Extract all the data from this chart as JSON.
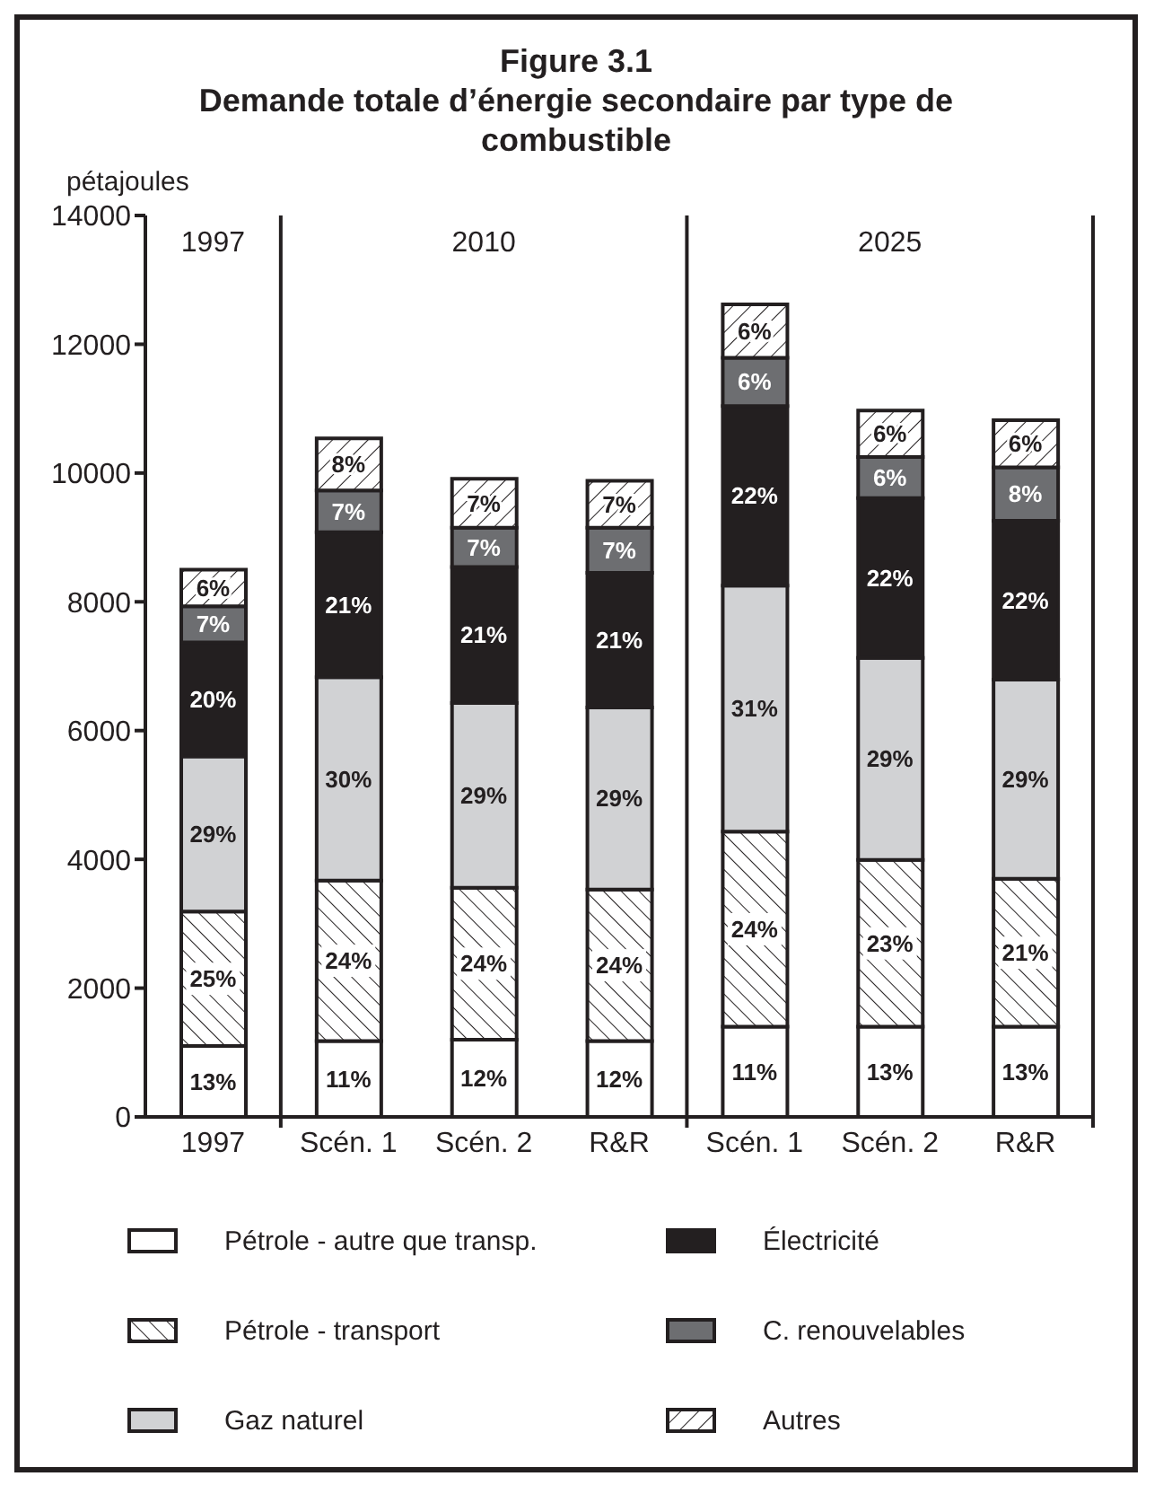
{
  "chart_data": {
    "type": "bar",
    "stacked": true,
    "title": "Figure 3.1",
    "subtitle": "Demande totale d’énergie secondaire par type de combustible",
    "ylabel": "pétajoules",
    "categories": [
      "1997",
      "Scén. 1",
      "Scén. 2",
      "R&R",
      "Scén. 1",
      "Scén. 2",
      "R&R"
    ],
    "ylim": [
      0,
      14000
    ],
    "yticks": [
      0,
      2000,
      4000,
      6000,
      8000,
      10000,
      12000,
      14000
    ],
    "grid": false,
    "legend": "bottom",
    "series": [
      {
        "name": "Pétrole - autre que transp.",
        "color": "#ffffff",
        "values": [
          1100,
          1180,
          1200,
          1180,
          1400,
          1400,
          1400
        ]
      },
      {
        "name": "Pétrole - transport",
        "color": "#231f20",
        "values": [
          2090,
          2490,
          2360,
          2350,
          3030,
          2590,
          2300
        ]
      },
      {
        "name": "Gaz naturel",
        "color": "#d1d2d4",
        "values": [
          2410,
          3160,
          2870,
          2830,
          3820,
          3140,
          3090
        ]
      },
      {
        "name": "Électricité",
        "color": "#231f20",
        "values": [
          1770,
          2250,
          2110,
          2090,
          2790,
          2480,
          2470
        ]
      },
      {
        "name": "C. renouvelables",
        "color": "#6d6e71",
        "values": [
          560,
          650,
          610,
          700,
          750,
          640,
          830
        ]
      },
      {
        "name": "Autres",
        "color": "#231f20",
        "values": [
          570,
          810,
          760,
          730,
          830,
          720,
          730
        ]
      }
    ],
    "annotations": [
      "1997",
      "2010",
      "2025",
      "13%",
      "11%",
      "12%",
      "12%",
      "11%",
      "13%",
      "13%",
      "25%",
      "24%",
      "24%",
      "24%",
      "24%",
      "23%",
      "21%",
      "29%",
      "30%",
      "29%",
      "29%",
      "31%",
      "29%",
      "29%",
      "20%",
      "21%",
      "21%",
      "21%",
      "22%",
      "22%",
      "22%",
      "7%",
      "7%",
      "7%",
      "7%",
      "6%",
      "6%",
      "8%",
      "6%",
      "8%",
      "7%",
      "7%",
      "6%",
      "6%",
      "6%"
    ]
  }
}
